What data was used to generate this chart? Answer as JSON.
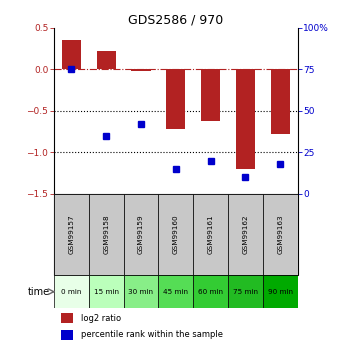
{
  "title": "GDS2586 / 970",
  "samples": [
    "GSM99157",
    "GSM99158",
    "GSM99159",
    "GSM99160",
    "GSM99161",
    "GSM99162",
    "GSM99163"
  ],
  "time_labels": [
    "0 min",
    "15 min",
    "30 min",
    "45 min",
    "60 min",
    "75 min",
    "90 min"
  ],
  "log2_ratio": [
    0.35,
    0.22,
    -0.02,
    -0.72,
    -0.62,
    -1.2,
    -0.78
  ],
  "percentile_rank": [
    75,
    35,
    42,
    15,
    20,
    10,
    18
  ],
  "bar_color": "#b22222",
  "dot_color": "#0000cc",
  "ylim_left": [
    -1.5,
    0.5
  ],
  "ylim_right": [
    0,
    100
  ],
  "dotted_lines": [
    -0.5,
    -1.0
  ],
  "right_ticks": [
    0,
    25,
    50,
    75,
    100
  ],
  "right_tick_labels": [
    "0",
    "25",
    "50",
    "75",
    "100%"
  ],
  "left_ticks": [
    -1.5,
    -1.0,
    -0.5,
    0,
    0.5
  ],
  "time_colors": [
    "#e8ffe8",
    "#bbffbb",
    "#88ee88",
    "#55dd55",
    "#33cc33",
    "#22bb22",
    "#00aa00"
  ],
  "sample_bg_color": "#c8c8c8",
  "legend_bar_label": "log2 ratio",
  "legend_dot_label": "percentile rank within the sample"
}
